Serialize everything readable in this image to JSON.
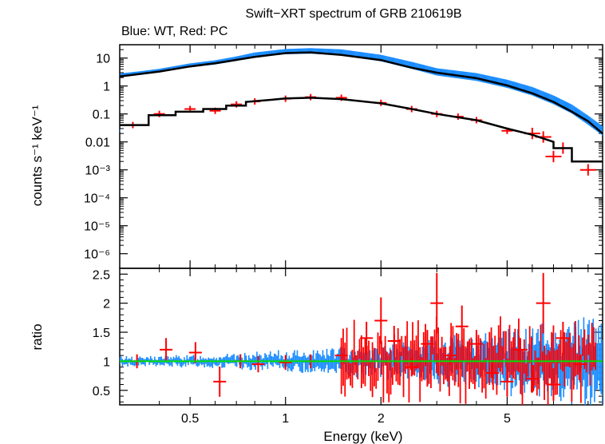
{
  "chart_data": [
    {
      "type": "scatter",
      "panel": "spectrum",
      "title": "Swift−XRT spectrum of GRB 210619B",
      "subtitle": "Blue: WT, Red: PC",
      "ylabel": "counts s⁻¹ keV⁻¹",
      "xscale": "log",
      "yscale": "log",
      "xlim": [
        0.3,
        10
      ],
      "ylim": [
        3e-07,
        30
      ],
      "y_tick_labels": [
        "10",
        "1",
        "0.1",
        "0.01",
        "10⁻³",
        "10⁻⁴",
        "10⁻⁵",
        "10⁻⁶"
      ],
      "series": [
        {
          "name": "WT",
          "color": "#1a8cff",
          "x": [
            0.3,
            0.35,
            0.4,
            0.45,
            0.5,
            0.6,
            0.7,
            0.8,
            1.0,
            1.2,
            1.5,
            2.0,
            2.5,
            3.0,
            4.0,
            5.0,
            6.0,
            7.0,
            8.0,
            9.0,
            10.0
          ],
          "y": [
            2.5,
            3.0,
            3.6,
            4.5,
            5.5,
            7.0,
            9.5,
            13,
            17,
            18,
            16,
            10,
            5.5,
            3.2,
            2.1,
            1.2,
            0.65,
            0.32,
            0.15,
            0.06,
            0.025
          ]
        },
        {
          "name": "PC",
          "color": "#ff0000",
          "x": [
            0.33,
            0.4,
            0.5,
            0.6,
            0.7,
            0.8,
            1.0,
            1.2,
            1.5,
            2.0,
            2.5,
            3.0,
            3.5,
            4.0,
            5.0,
            6.0,
            6.5,
            7.0,
            7.5,
            9.0
          ],
          "y": [
            0.04,
            0.1,
            0.15,
            0.13,
            0.22,
            0.28,
            0.35,
            0.4,
            0.38,
            0.25,
            0.15,
            0.1,
            0.08,
            0.06,
            0.025,
            0.02,
            0.015,
            0.003,
            0.006,
            0.001
          ]
        },
        {
          "name": "model WT",
          "color": "#000000",
          "x": [
            0.3,
            0.4,
            0.5,
            0.6,
            0.8,
            1.0,
            1.2,
            1.5,
            2.0,
            2.5,
            3.0,
            4.0,
            5.0,
            6.0,
            7.0,
            8.0,
            9.0,
            10.0
          ],
          "y": [
            2.2,
            3.3,
            5.0,
            6.5,
            11,
            15,
            16,
            13,
            8.5,
            4.5,
            3.0,
            1.9,
            1.05,
            0.55,
            0.27,
            0.12,
            0.055,
            0.02
          ]
        },
        {
          "name": "model PC",
          "color": "#000000",
          "x": [
            0.3,
            0.37,
            0.37,
            0.45,
            0.45,
            0.55,
            0.55,
            0.65,
            0.65,
            0.75,
            0.75,
            0.9,
            1.0,
            1.2,
            1.5,
            2.0,
            2.5,
            3.0,
            4.0,
            5.0,
            6.0,
            7.0,
            7.0,
            8.0,
            8.0,
            10.0
          ],
          "y": [
            0.04,
            0.04,
            0.09,
            0.09,
            0.12,
            0.12,
            0.15,
            0.15,
            0.2,
            0.2,
            0.27,
            0.32,
            0.36,
            0.38,
            0.34,
            0.24,
            0.15,
            0.1,
            0.06,
            0.03,
            0.018,
            0.01,
            0.006,
            0.006,
            0.002,
            0.002
          ]
        }
      ]
    },
    {
      "type": "scatter",
      "panel": "ratio",
      "xlabel": "Energy (keV)",
      "ylabel": "ratio",
      "xscale": "log",
      "xlim": [
        0.3,
        10
      ],
      "ylim": [
        0.25,
        2.6
      ],
      "x_tick_labels": [
        "0.5",
        "1",
        "2",
        "5"
      ],
      "x_ticks": [
        0.5,
        1,
        2,
        5
      ],
      "y_tick_labels": [
        "0.5",
        "1",
        "1.5",
        "2",
        "2.5"
      ],
      "y_ticks": [
        0.5,
        1,
        1.5,
        2,
        2.5
      ],
      "reference_line": {
        "y": 1,
        "color": "#00e000"
      },
      "series": [
        {
          "name": "WT",
          "color": "#1a8cff",
          "x": [
            0.31,
            0.35,
            0.4,
            0.45,
            0.5,
            0.55,
            0.6,
            0.7,
            0.8,
            0.9,
            1.0,
            1.2,
            1.4,
            1.6,
            1.8,
            2.0,
            2.3,
            2.6,
            3.0,
            3.4,
            3.8,
            4.2,
            4.6,
            5.0,
            5.5,
            6.0,
            6.5,
            7.0,
            7.5,
            8.0,
            8.5,
            9.0,
            9.5
          ],
          "y": [
            1.1,
            0.95,
            1.05,
            1.0,
            0.95,
            1.05,
            1.0,
            1.02,
            0.98,
            1.0,
            1.02,
            0.97,
            1.05,
            0.95,
            1.08,
            1.0,
            0.9,
            1.1,
            1.0,
            0.85,
            1.2,
            0.9,
            1.25,
            0.8,
            1.3,
            0.75,
            1.35,
            0.7,
            1.3,
            0.8,
            1.4,
            0.6,
            1.2
          ]
        },
        {
          "name": "PC",
          "color": "#ff0000",
          "x": [
            0.34,
            0.42,
            0.52,
            0.62,
            0.72,
            0.82,
            1.0,
            1.2,
            1.5,
            1.8,
            2.0,
            2.2,
            2.5,
            2.8,
            3.0,
            3.3,
            3.6,
            4.0,
            4.5,
            5.0,
            5.5,
            6.0,
            6.5,
            7.0,
            7.5,
            8.5
          ],
          "y": [
            1.0,
            1.2,
            1.15,
            0.65,
            1.0,
            0.95,
            0.98,
            1.0,
            1.1,
            1.4,
            1.7,
            1.35,
            0.9,
            1.3,
            2.0,
            1.1,
            1.6,
            1.3,
            0.8,
            0.65,
            1.2,
            0.7,
            2.0,
            0.6,
            1.4,
            0.95
          ]
        }
      ]
    }
  ]
}
